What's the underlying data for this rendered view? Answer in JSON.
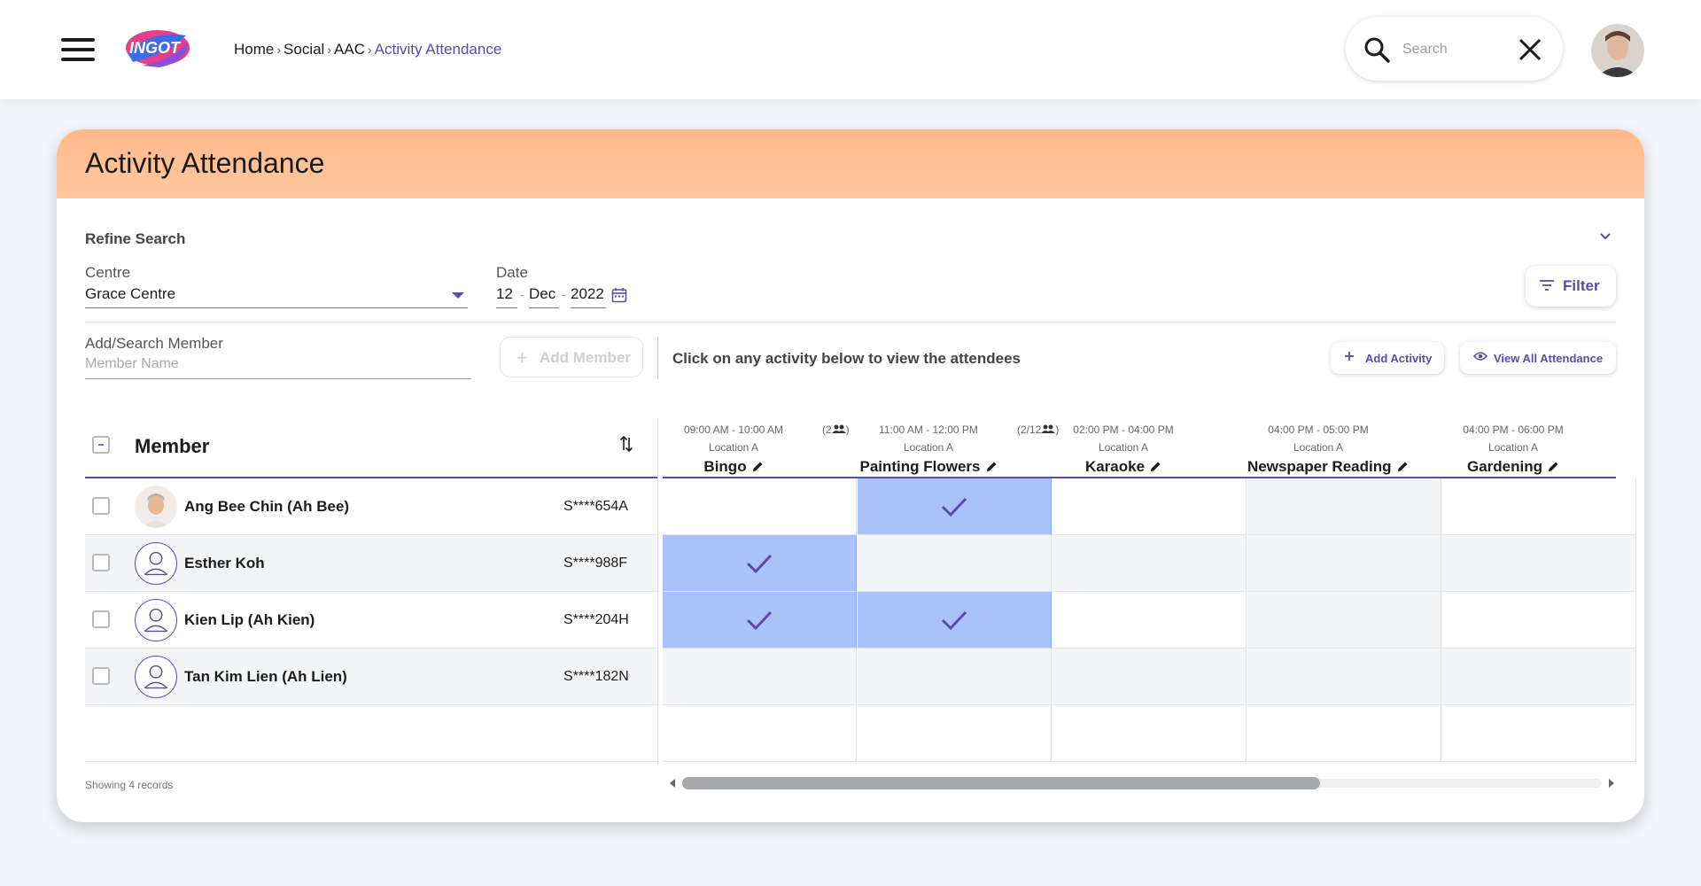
{
  "nav": {
    "logo_text": "INGOT",
    "breadcrumb": [
      "Home",
      "Social",
      "AAC",
      "Activity Attendance"
    ],
    "search_placeholder": "Search"
  },
  "card": {
    "title": "Activity Attendance",
    "refine_label": "Refine Search",
    "centre_label": "Centre",
    "centre_value": "Grace Centre",
    "date_label": "Date",
    "date_day": "12",
    "date_month": "Dec",
    "date_year": "2022",
    "filter_label": "Filter",
    "add_search_label": "Add/Search Member",
    "member_placeholder": "Member Name",
    "add_member_label": "Add Member",
    "hint": "Click on any activity below to view the attendees",
    "add_activity_label": "Add Activity",
    "view_all_label": "View All Attendance",
    "member_col_header": "Member",
    "footer": "Showing 4 records"
  },
  "members": [
    {
      "name": "Ang Bee Chin (Ah Bee)",
      "id": "S****654A",
      "photo": true
    },
    {
      "name": "Esther Koh",
      "id": "S****988F",
      "photo": false
    },
    {
      "name": "Kien Lip (Ah Kien)",
      "id": "S****204H",
      "photo": false
    },
    {
      "name": "Tan Kim Lien (Ah Lien)",
      "id": "S****182N",
      "photo": false
    }
  ],
  "activities": [
    {
      "time": "09:00 AM - 10:00 AM",
      "location": "Location A",
      "name": "Bingo",
      "count": "(2"
    },
    {
      "time": "11:00 AM - 12:00 PM",
      "location": "Location A",
      "name": "Painting Flowers",
      "count": "(2/12"
    },
    {
      "time": "02:00 PM - 04:00 PM",
      "location": "Location A",
      "name": "Karaoke",
      "count": ""
    },
    {
      "time": "04:00 PM - 05:00 PM",
      "location": "Location A",
      "name": "Newspaper Reading",
      "count": ""
    },
    {
      "time": "04:00 PM - 06:00 PM",
      "location": "Location A",
      "name": "Gardening",
      "count": ""
    }
  ],
  "attendance": [
    [
      false,
      true,
      false,
      false,
      false
    ],
    [
      true,
      false,
      false,
      false,
      false
    ],
    [
      true,
      true,
      false,
      false,
      false
    ],
    [
      false,
      false,
      false,
      false,
      false
    ]
  ],
  "colors": {
    "accent": "#5a4ba8",
    "header": "#ffc09a",
    "checked_cell": "#a9c3fa"
  }
}
